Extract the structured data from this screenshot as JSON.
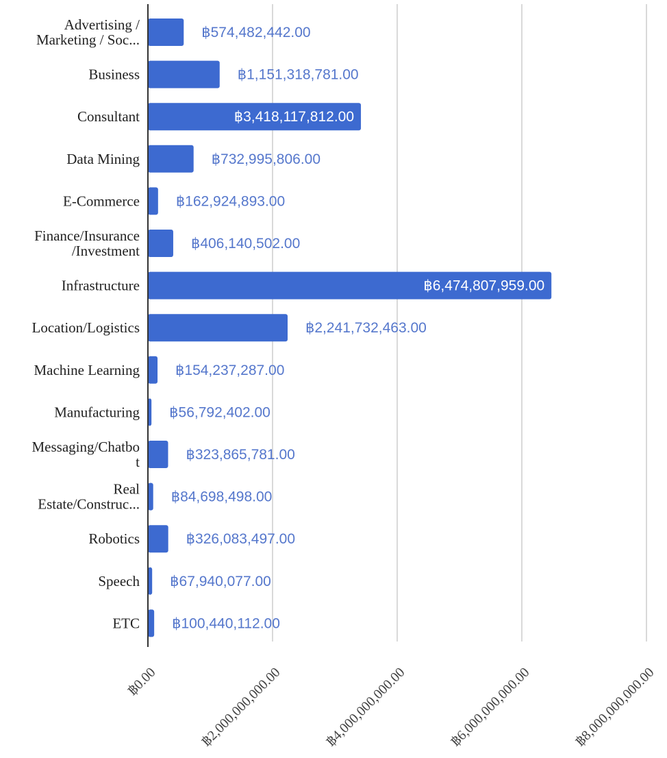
{
  "chart_data": {
    "type": "bar",
    "orientation": "horizontal",
    "categories": [
      [
        "Advertising /",
        "Marketing / Soc..."
      ],
      [
        "Business"
      ],
      [
        "Consultant"
      ],
      [
        "Data Mining"
      ],
      [
        "E-Commerce"
      ],
      [
        "Finance/Insurance",
        "/Investment"
      ],
      [
        "Infrastructure"
      ],
      [
        "Location/Logistics"
      ],
      [
        "Machine Learning"
      ],
      [
        "Manufacturing"
      ],
      [
        "Messaging/Chatbo",
        "t"
      ],
      [
        "Real",
        "Estate/Construc..."
      ],
      [
        "Robotics"
      ],
      [
        "Speech"
      ],
      [
        "ETC"
      ]
    ],
    "values": [
      574482442,
      1151318781,
      3418117812,
      732995806,
      162924893,
      406140502,
      6474807959,
      2241732463,
      154237287,
      56792402,
      323865781,
      84698498,
      326083497,
      67940077,
      100440112
    ],
    "value_labels": [
      "฿574,482,442.00",
      "฿1,151,318,781.00",
      "฿3,418,117,812.00",
      "฿732,995,806.00",
      "฿162,924,893.00",
      "฿406,140,502.00",
      "฿6,474,807,959.00",
      "฿2,241,732,463.00",
      "฿154,237,287.00",
      "฿56,792,402.00",
      "฿323,865,781.00",
      "฿84,698,498.00",
      "฿326,083,497.00",
      "฿67,940,077.00",
      "฿100,440,112.00"
    ],
    "x_ticks": [
      0,
      2000000000,
      4000000000,
      6000000000,
      8000000000
    ],
    "x_tick_labels": [
      "฿0.00",
      "฿2,000,000,000.00",
      "฿4,000,000,000.00",
      "฿6,000,000,000.00",
      "฿8,000,000,000.00"
    ],
    "xlim": [
      0,
      8000000000
    ],
    "title": "",
    "xlabel": "",
    "ylabel": "",
    "grid": "vertical",
    "legend": "none",
    "colors": {
      "bar": "#3d6ad0",
      "value_label_outside": "#5577cc",
      "value_label_inside": "#ffffff",
      "grid": "#d9d9d9",
      "axis": "#333333"
    }
  }
}
